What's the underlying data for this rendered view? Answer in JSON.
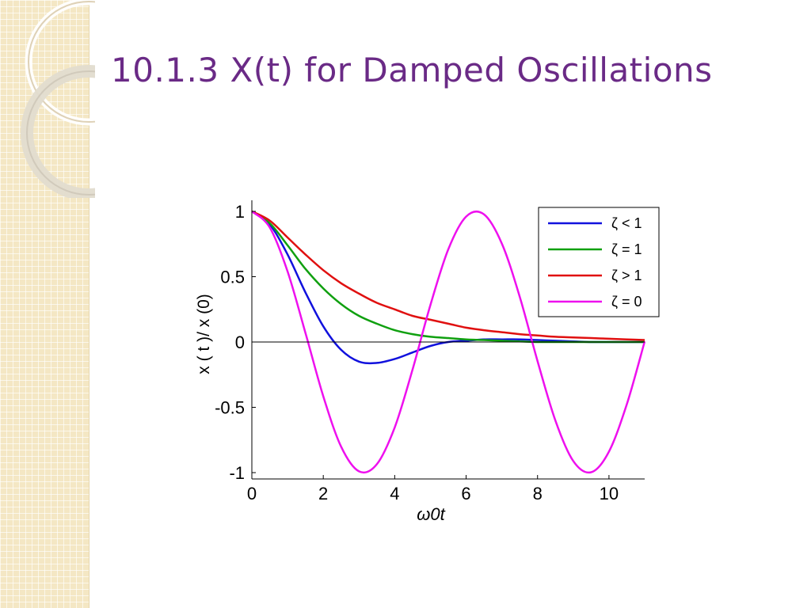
{
  "slide": {
    "title": "10.1.3 X(t) for Damped Oscillations"
  },
  "chart_data": {
    "type": "line",
    "title": "",
    "xlabel": "ω0t",
    "ylabel": "x ( t )/ x (0)",
    "xlim": [
      0,
      11
    ],
    "ylim": [
      -1,
      1
    ],
    "x_ticks": [
      0,
      2,
      4,
      6,
      8,
      10
    ],
    "y_ticks": [
      1,
      0.5,
      0,
      -0.5,
      -1
    ],
    "x_tick_labels": [
      "0",
      "2",
      "4",
      "6",
      "8",
      "10"
    ],
    "y_tick_labels": [
      "1",
      "0.5",
      "0",
      "-0.5",
      "-1"
    ],
    "grid": false,
    "zero_line": true,
    "legend_position": "top-right",
    "x": [
      0,
      0.5,
      1,
      1.5,
      2,
      2.5,
      3,
      3.5,
      4,
      4.5,
      5,
      5.5,
      6,
      6.5,
      7,
      7.5,
      8,
      8.5,
      9,
      9.5,
      10,
      10.5,
      11
    ],
    "series": [
      {
        "name": "ζ < 1",
        "color": "#1111dd",
        "values": [
          1,
          0.9,
          0.67,
          0.38,
          0.12,
          -0.06,
          -0.15,
          -0.16,
          -0.13,
          -0.08,
          -0.03,
          0.0,
          0.01,
          0.02,
          0.02,
          0.02,
          0.015,
          0.01,
          0.005,
          0.0,
          0.0,
          0.0,
          0.0
        ]
      },
      {
        "name": "ζ = 1",
        "color": "#10a010",
        "values": [
          1,
          0.91,
          0.74,
          0.56,
          0.41,
          0.29,
          0.2,
          0.14,
          0.09,
          0.06,
          0.04,
          0.03,
          0.02,
          0.015,
          0.01,
          0.005,
          0.0,
          0.0,
          0.0,
          0.0,
          0.0,
          0.0,
          0.0
        ]
      },
      {
        "name": "ζ > 1",
        "color": "#e01010",
        "values": [
          1,
          0.93,
          0.8,
          0.67,
          0.55,
          0.45,
          0.37,
          0.3,
          0.25,
          0.2,
          0.17,
          0.14,
          0.11,
          0.09,
          0.075,
          0.06,
          0.05,
          0.04,
          0.035,
          0.03,
          0.025,
          0.02,
          0.015
        ]
      },
      {
        "name": "ζ = 0",
        "color": "#ee10ee",
        "values": [
          1,
          0.878,
          0.54,
          0.071,
          -0.416,
          -0.801,
          -0.99,
          -0.936,
          -0.654,
          -0.211,
          0.284,
          0.709,
          0.96,
          0.977,
          0.754,
          0.347,
          -0.146,
          -0.602,
          -0.911,
          -0.997,
          -0.839,
          -0.476,
          0.004
        ]
      }
    ]
  }
}
